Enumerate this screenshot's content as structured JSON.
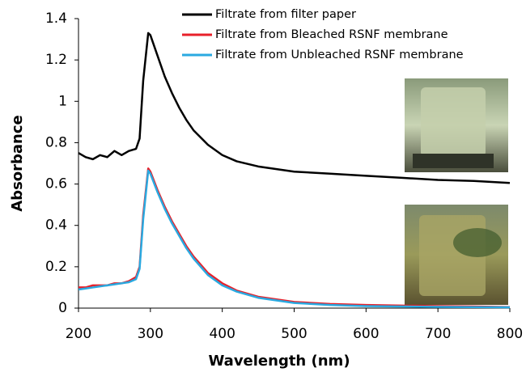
{
  "chart_data": {
    "type": "line",
    "x_label": "Wavelength (nm)",
    "y_label": "Absorbance",
    "x": [
      200,
      210,
      220,
      230,
      240,
      250,
      260,
      270,
      280,
      285,
      290,
      297,
      300,
      310,
      320,
      330,
      340,
      350,
      360,
      380,
      400,
      420,
      450,
      500,
      550,
      600,
      650,
      700,
      750,
      800
    ],
    "series": [
      {
        "name": "Filtrate from filter paper",
        "color": "#000000",
        "values": [
          0.75,
          0.73,
          0.72,
          0.74,
          0.73,
          0.76,
          0.74,
          0.76,
          0.77,
          0.82,
          1.1,
          1.33,
          1.32,
          1.22,
          1.12,
          1.04,
          0.97,
          0.91,
          0.86,
          0.79,
          0.74,
          0.71,
          0.685,
          0.66,
          0.65,
          0.64,
          0.63,
          0.62,
          0.615,
          0.605
        ]
      },
      {
        "name": "Filtrate from Bleached RSNF membrane",
        "color": "#e8202a",
        "values": [
          0.1,
          0.1,
          0.11,
          0.11,
          0.11,
          0.12,
          0.12,
          0.13,
          0.15,
          0.2,
          0.45,
          0.675,
          0.66,
          0.57,
          0.49,
          0.42,
          0.36,
          0.3,
          0.25,
          0.17,
          0.12,
          0.085,
          0.055,
          0.03,
          0.02,
          0.015,
          0.012,
          0.01,
          0.008,
          0.005
        ]
      },
      {
        "name": "Filtrate from Unbleached RSNF membrane",
        "color": "#2aa9e0",
        "values": [
          0.09,
          0.095,
          0.1,
          0.105,
          0.11,
          0.115,
          0.12,
          0.125,
          0.14,
          0.19,
          0.43,
          0.665,
          0.65,
          0.56,
          0.48,
          0.41,
          0.35,
          0.29,
          0.24,
          0.16,
          0.11,
          0.08,
          0.05,
          0.025,
          0.015,
          0.01,
          0.008,
          0.006,
          0.005,
          0.004
        ]
      }
    ],
    "xlim": [
      200,
      800
    ],
    "xticks": [
      200,
      300,
      400,
      500,
      600,
      700,
      800
    ],
    "ylim": [
      0,
      1.4
    ],
    "yticks": [
      0,
      0.2,
      0.4,
      0.6,
      0.8,
      1,
      1.2,
      1.4
    ],
    "grid": false
  }
}
